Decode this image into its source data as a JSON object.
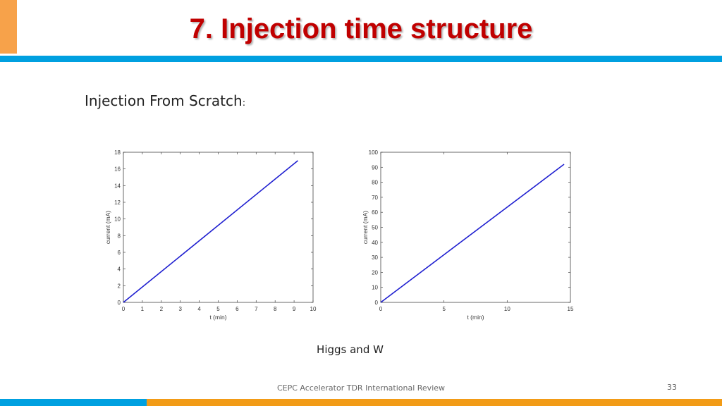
{
  "slide": {
    "title": "7. Injection time structure",
    "subtitle": "Injection From Scratch",
    "subtitle_punct": ":",
    "caption": "Higgs and W",
    "footer": "CEPC Accelerator TDR International Review",
    "page_number": "33"
  },
  "colors": {
    "title": "#c00000",
    "accent_orange": "#f7a24a",
    "bar_blue": "#00a0e0",
    "bar_orange": "#f29b16",
    "series": "#1f1fd0"
  },
  "chart_data": [
    {
      "type": "line",
      "xlabel": "t (min)",
      "ylabel": "current (mA)",
      "xlim": [
        0,
        10
      ],
      "ylim": [
        0,
        18
      ],
      "xticks": [
        0,
        1,
        2,
        3,
        4,
        5,
        6,
        7,
        8,
        9,
        10
      ],
      "yticks": [
        0,
        2,
        4,
        6,
        8,
        10,
        12,
        14,
        16,
        18
      ],
      "grid": false,
      "series": [
        {
          "x": [
            0,
            9.2
          ],
          "y": [
            0,
            17
          ]
        }
      ]
    },
    {
      "type": "line",
      "xlabel": "t (min)",
      "ylabel": "current (mA)",
      "xlim": [
        0,
        15
      ],
      "ylim": [
        0,
        100
      ],
      "xticks": [
        0,
        5,
        10,
        15
      ],
      "yticks": [
        0,
        10,
        20,
        30,
        40,
        50,
        60,
        70,
        80,
        90,
        100
      ],
      "grid": false,
      "series": [
        {
          "x": [
            0,
            14.5
          ],
          "y": [
            0,
            92
          ]
        }
      ]
    }
  ]
}
